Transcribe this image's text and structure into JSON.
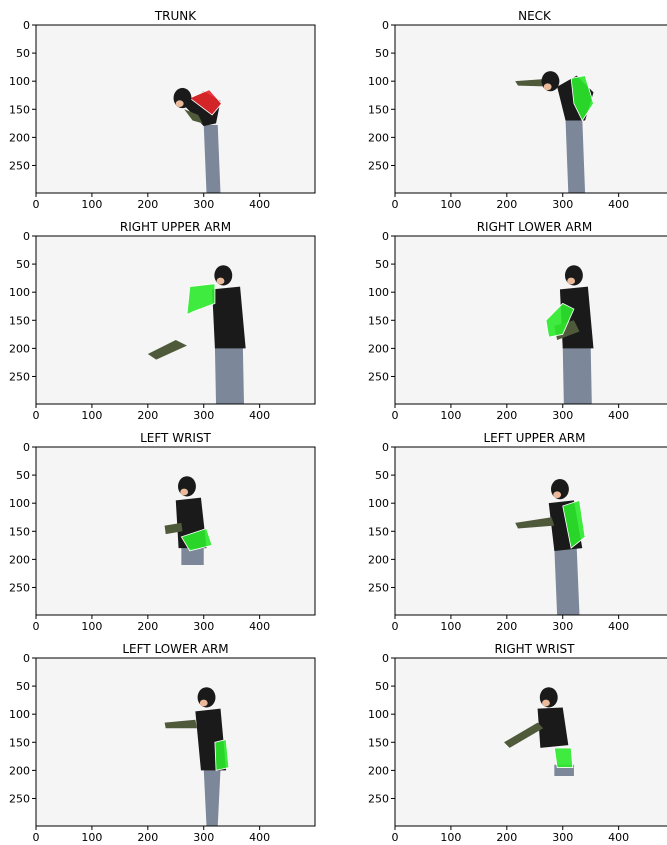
{
  "panels": [
    {
      "title": "TRUNK",
      "highlight": "red",
      "pose": "bent-trunk"
    },
    {
      "title": "NECK",
      "highlight": "green",
      "pose": "bent-neck"
    },
    {
      "title": "RIGHT UPPER ARM",
      "highlight": "green",
      "pose": "upper-arm"
    },
    {
      "title": "RIGHT LOWER ARM",
      "highlight": "green",
      "pose": "lower-arm"
    },
    {
      "title": "LEFT WRIST",
      "highlight": "green",
      "pose": "wrist-left"
    },
    {
      "title": "LEFT UPPER ARM",
      "highlight": "green",
      "pose": "left-upper"
    },
    {
      "title": "LEFT LOWER ARM",
      "highlight": "green",
      "pose": "left-lower"
    },
    {
      "title": "RIGHT WRIST",
      "highlight": "green",
      "pose": "wrist-right"
    }
  ],
  "x_ticks": [
    "0",
    "100",
    "200",
    "300",
    "400"
  ],
  "y_ticks": [
    "0",
    "50",
    "100",
    "150",
    "200",
    "250"
  ],
  "colors": {
    "highlight_red": "#e8262a",
    "highlight_green": "#2bea2b",
    "jacket": "#1a1a1a",
    "sleeve": "#4f5a3a",
    "jeans": "#7c8799",
    "skin": "#e9b99a",
    "background": "#f5f5f5"
  }
}
